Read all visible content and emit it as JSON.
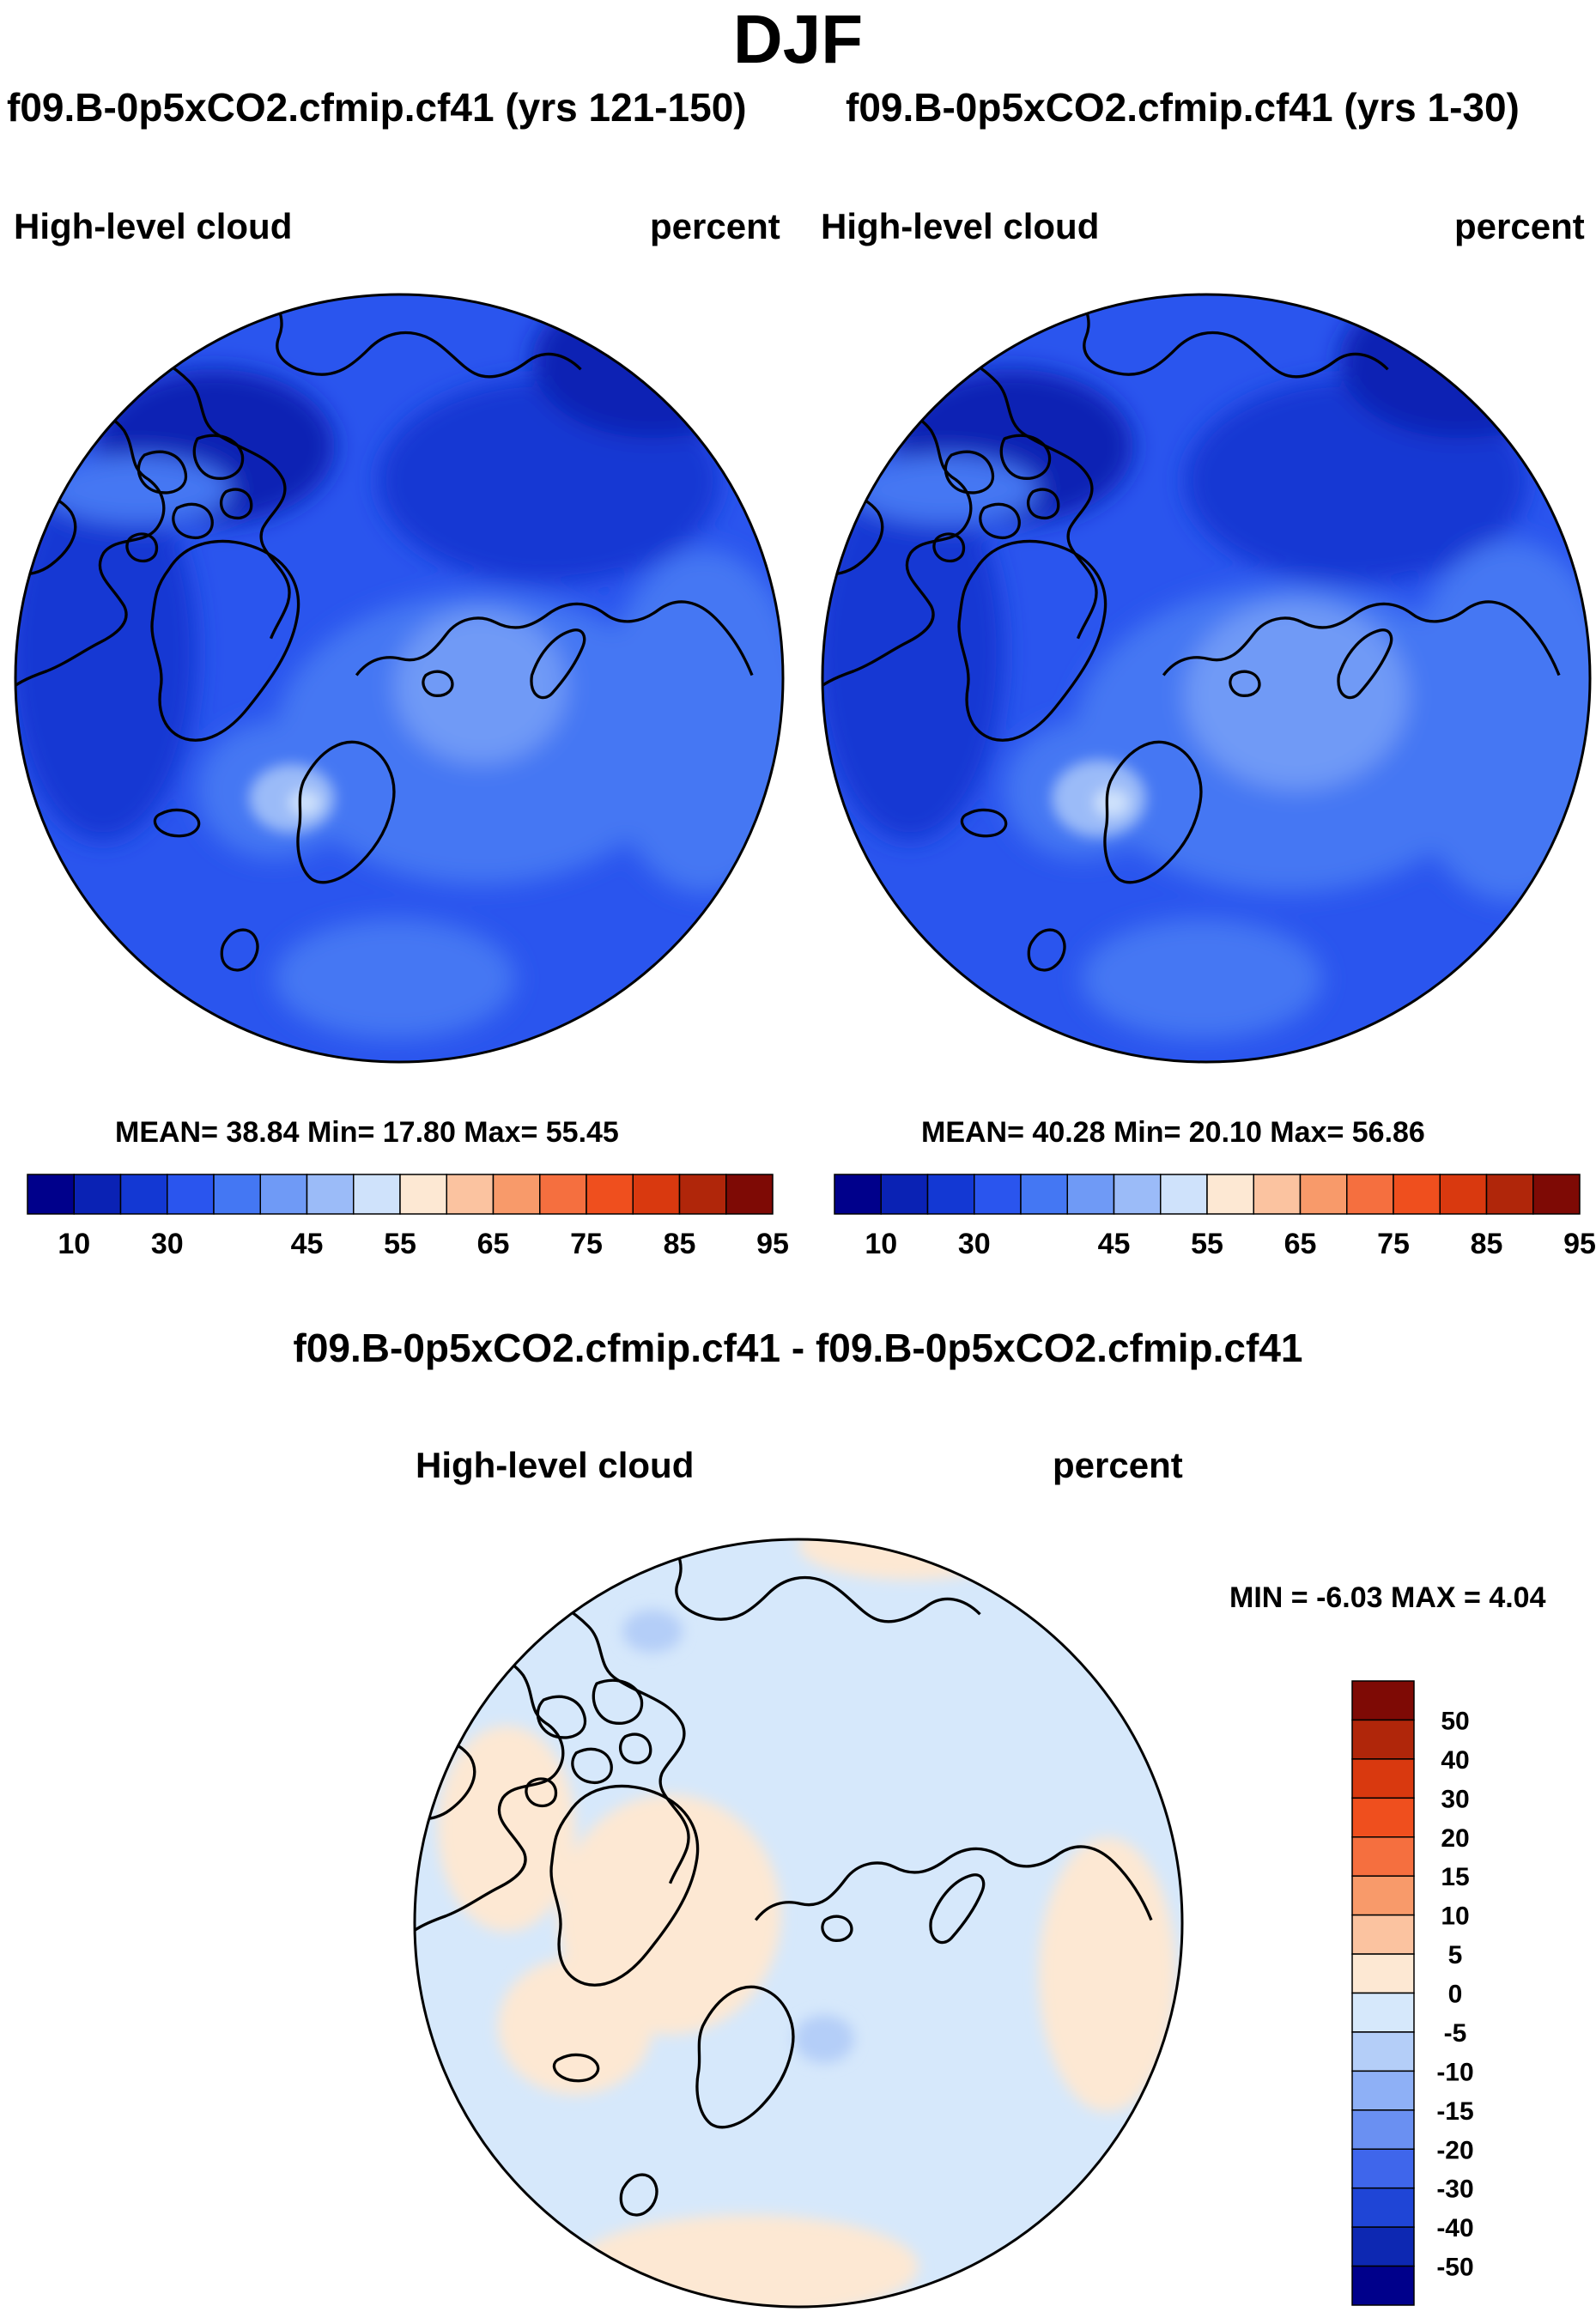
{
  "figure": {
    "title": "DJF",
    "panels": [
      {
        "case": "f09.B-0p5xCO2.cfmip.cf41 (yrs 121-150)",
        "variable": "High-level cloud",
        "units": "percent",
        "stats": "MEAN=  38.84  Min=  17.80  Max=  55.45"
      },
      {
        "case": "f09.B-0p5xCO2.cfmip.cf41 (yrs 1-30)",
        "variable": "High-level cloud",
        "units": "percent",
        "stats": "MEAN=  40.28  Min=  20.10  Max=  56.86"
      }
    ],
    "diff": {
      "title": "f09.B-0p5xCO2.cfmip.cf41 - f09.B-0p5xCO2.cfmip.cf41",
      "variable": "High-level cloud",
      "units": "percent",
      "stats": "MIN =  -6.03 MAX =   4.04"
    }
  },
  "chart_data": [
    {
      "type": "heatmap",
      "title": "f09.B-0p5xCO2.cfmip.cf41 (yrs 121-150)",
      "projection": "north polar stereographic",
      "variable": "High-level cloud",
      "units": "percent",
      "mean": 38.84,
      "min": 17.8,
      "max": 55.45,
      "colorbar": {
        "orientation": "horizontal",
        "levels": [
          10,
          15,
          20,
          25,
          30,
          35,
          40,
          45,
          50,
          55,
          60,
          65,
          70,
          75,
          80,
          85,
          90,
          95
        ],
        "tick_labels": [
          "10",
          "30",
          "45",
          "55",
          "65",
          "75",
          "85",
          "95"
        ],
        "colors": [
          "#00008b",
          "#0a22b4",
          "#1338d3",
          "#2a55ee",
          "#4477f3",
          "#6f9af6",
          "#9bbbf8",
          "#cfe2fb",
          "#fde8d3",
          "#fbc3a0",
          "#f89a6a",
          "#f56f3f",
          "#ef4f1e",
          "#d9390f",
          "#b0260a",
          "#7e0a05"
        ]
      }
    },
    {
      "type": "heatmap",
      "title": "f09.B-0p5xCO2.cfmip.cf41 (yrs 1-30)",
      "projection": "north polar stereographic",
      "variable": "High-level cloud",
      "units": "percent",
      "mean": 40.28,
      "min": 20.1,
      "max": 56.86,
      "colorbar": {
        "orientation": "horizontal",
        "levels": [
          10,
          15,
          20,
          25,
          30,
          35,
          40,
          45,
          50,
          55,
          60,
          65,
          70,
          75,
          80,
          85,
          90,
          95
        ],
        "tick_labels": [
          "10",
          "30",
          "45",
          "55",
          "65",
          "75",
          "85",
          "95"
        ],
        "colors": [
          "#00008b",
          "#0a22b4",
          "#1338d3",
          "#2a55ee",
          "#4477f3",
          "#6f9af6",
          "#9bbbf8",
          "#cfe2fb",
          "#fde8d3",
          "#fbc3a0",
          "#f89a6a",
          "#f56f3f",
          "#ef4f1e",
          "#d9390f",
          "#b0260a",
          "#7e0a05"
        ]
      }
    },
    {
      "type": "heatmap",
      "title": "f09.B-0p5xCO2.cfmip.cf41 - f09.B-0p5xCO2.cfmip.cf41",
      "projection": "north polar stereographic",
      "variable": "High-level cloud",
      "units": "percent",
      "min": -6.03,
      "max": 4.04,
      "colorbar": {
        "orientation": "vertical",
        "tick_labels": [
          "50",
          "40",
          "30",
          "20",
          "15",
          "10",
          "5",
          "0",
          "-5",
          "-10",
          "-15",
          "-20",
          "-30",
          "-40",
          "-50"
        ],
        "colors": [
          "#7e0a05",
          "#b0260a",
          "#d9390f",
          "#ef4f1e",
          "#f56f3f",
          "#f89a6a",
          "#fbc3a0",
          "#fde8d3",
          "#d6e8fb",
          "#b4cef8",
          "#8eb0f6",
          "#6a90f2",
          "#3f66eb",
          "#1f45d6",
          "#0d28b2",
          "#00008b"
        ]
      }
    }
  ]
}
